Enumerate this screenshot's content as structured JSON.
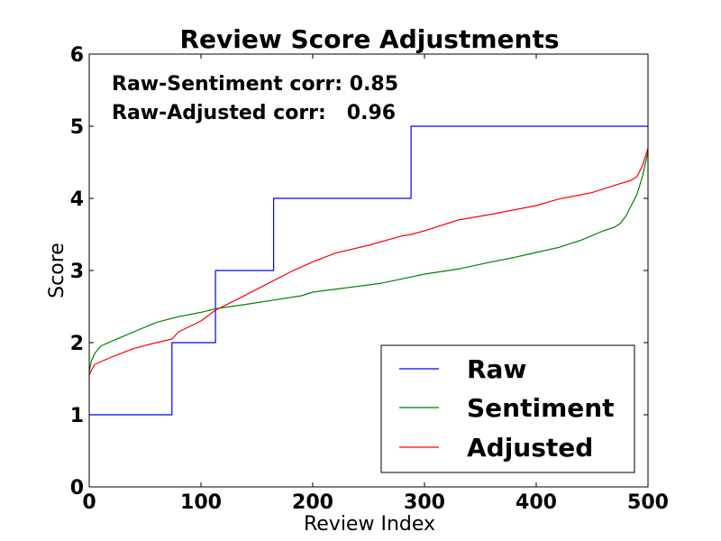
{
  "chart_data": {
    "type": "line",
    "title": "Review Score Adjustments",
    "xlabel": "Review Index",
    "ylabel": "Score",
    "xlim": [
      0,
      500
    ],
    "ylim": [
      0,
      6
    ],
    "x_ticks": [
      0,
      100,
      200,
      300,
      400,
      500
    ],
    "y_ticks": [
      0,
      1,
      2,
      3,
      4,
      5,
      6
    ],
    "legend_position": "lower-right",
    "annotations": [
      "Raw-Sentiment corr: 0.85",
      "Raw-Adjusted corr:   0.96"
    ],
    "series": [
      {
        "name": "Raw",
        "color": "#0000ff",
        "style": "step",
        "points": [
          [
            0,
            1
          ],
          [
            74,
            1
          ],
          [
            74,
            2
          ],
          [
            113,
            2
          ],
          [
            113,
            3
          ],
          [
            165,
            3
          ],
          [
            165,
            4
          ],
          [
            288,
            4
          ],
          [
            288,
            5
          ],
          [
            500,
            5
          ]
        ]
      },
      {
        "name": "Sentiment",
        "color": "#008000",
        "points": [
          [
            0,
            1.6
          ],
          [
            2,
            1.75
          ],
          [
            5,
            1.85
          ],
          [
            10,
            1.95
          ],
          [
            20,
            2.02
          ],
          [
            40,
            2.15
          ],
          [
            60,
            2.28
          ],
          [
            80,
            2.36
          ],
          [
            100,
            2.42
          ],
          [
            113,
            2.47
          ],
          [
            140,
            2.53
          ],
          [
            165,
            2.59
          ],
          [
            190,
            2.65
          ],
          [
            200,
            2.7
          ],
          [
            230,
            2.76
          ],
          [
            260,
            2.82
          ],
          [
            288,
            2.91
          ],
          [
            300,
            2.95
          ],
          [
            330,
            3.02
          ],
          [
            360,
            3.12
          ],
          [
            380,
            3.18
          ],
          [
            400,
            3.25
          ],
          [
            420,
            3.32
          ],
          [
            440,
            3.42
          ],
          [
            460,
            3.55
          ],
          [
            470,
            3.6
          ],
          [
            475,
            3.65
          ],
          [
            480,
            3.75
          ],
          [
            485,
            3.9
          ],
          [
            490,
            4.05
          ],
          [
            495,
            4.3
          ],
          [
            500,
            4.65
          ]
        ]
      },
      {
        "name": "Adjusted",
        "color": "#ff0000",
        "points": [
          [
            0,
            1.55
          ],
          [
            2,
            1.62
          ],
          [
            5,
            1.7
          ],
          [
            20,
            1.8
          ],
          [
            40,
            1.92
          ],
          [
            60,
            2.0
          ],
          [
            74,
            2.05
          ],
          [
            80,
            2.15
          ],
          [
            100,
            2.3
          ],
          [
            113,
            2.45
          ],
          [
            140,
            2.66
          ],
          [
            165,
            2.86
          ],
          [
            180,
            2.98
          ],
          [
            200,
            3.12
          ],
          [
            220,
            3.24
          ],
          [
            250,
            3.35
          ],
          [
            280,
            3.48
          ],
          [
            288,
            3.5
          ],
          [
            300,
            3.55
          ],
          [
            330,
            3.7
          ],
          [
            360,
            3.78
          ],
          [
            400,
            3.9
          ],
          [
            420,
            3.99
          ],
          [
            450,
            4.08
          ],
          [
            470,
            4.18
          ],
          [
            485,
            4.25
          ],
          [
            490,
            4.3
          ],
          [
            495,
            4.45
          ],
          [
            500,
            4.7
          ]
        ]
      }
    ]
  }
}
